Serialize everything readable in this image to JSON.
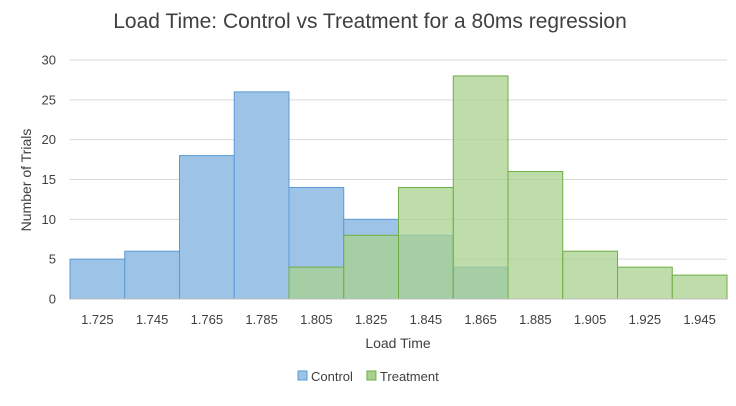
{
  "chart_data": {
    "type": "bar",
    "title": "Load Time: Control vs Treatment for a 80ms regression",
    "xlabel": "Load Time",
    "ylabel": "Number of Trials",
    "categories": [
      "1.725",
      "1.745",
      "1.765",
      "1.785",
      "1.805",
      "1.825",
      "1.845",
      "1.865",
      "1.885",
      "1.905",
      "1.925",
      "1.945"
    ],
    "yticks": [
      "0",
      "5",
      "10",
      "15",
      "20",
      "25",
      "30"
    ],
    "ylim": [
      0,
      30
    ],
    "grid": true,
    "legend_position": "bottom",
    "overlap": true,
    "series": [
      {
        "name": "Control",
        "color": "#9dc3e6",
        "edge": "#5b9bd5",
        "values": [
          5,
          6,
          18,
          26,
          14,
          10,
          8,
          4,
          0,
          0,
          0,
          0
        ]
      },
      {
        "name": "Treatment",
        "color": "#a9d18e",
        "edge": "#70ad47",
        "values": [
          0,
          0,
          0,
          0,
          4,
          8,
          14,
          28,
          16,
          6,
          4,
          3
        ]
      }
    ]
  }
}
